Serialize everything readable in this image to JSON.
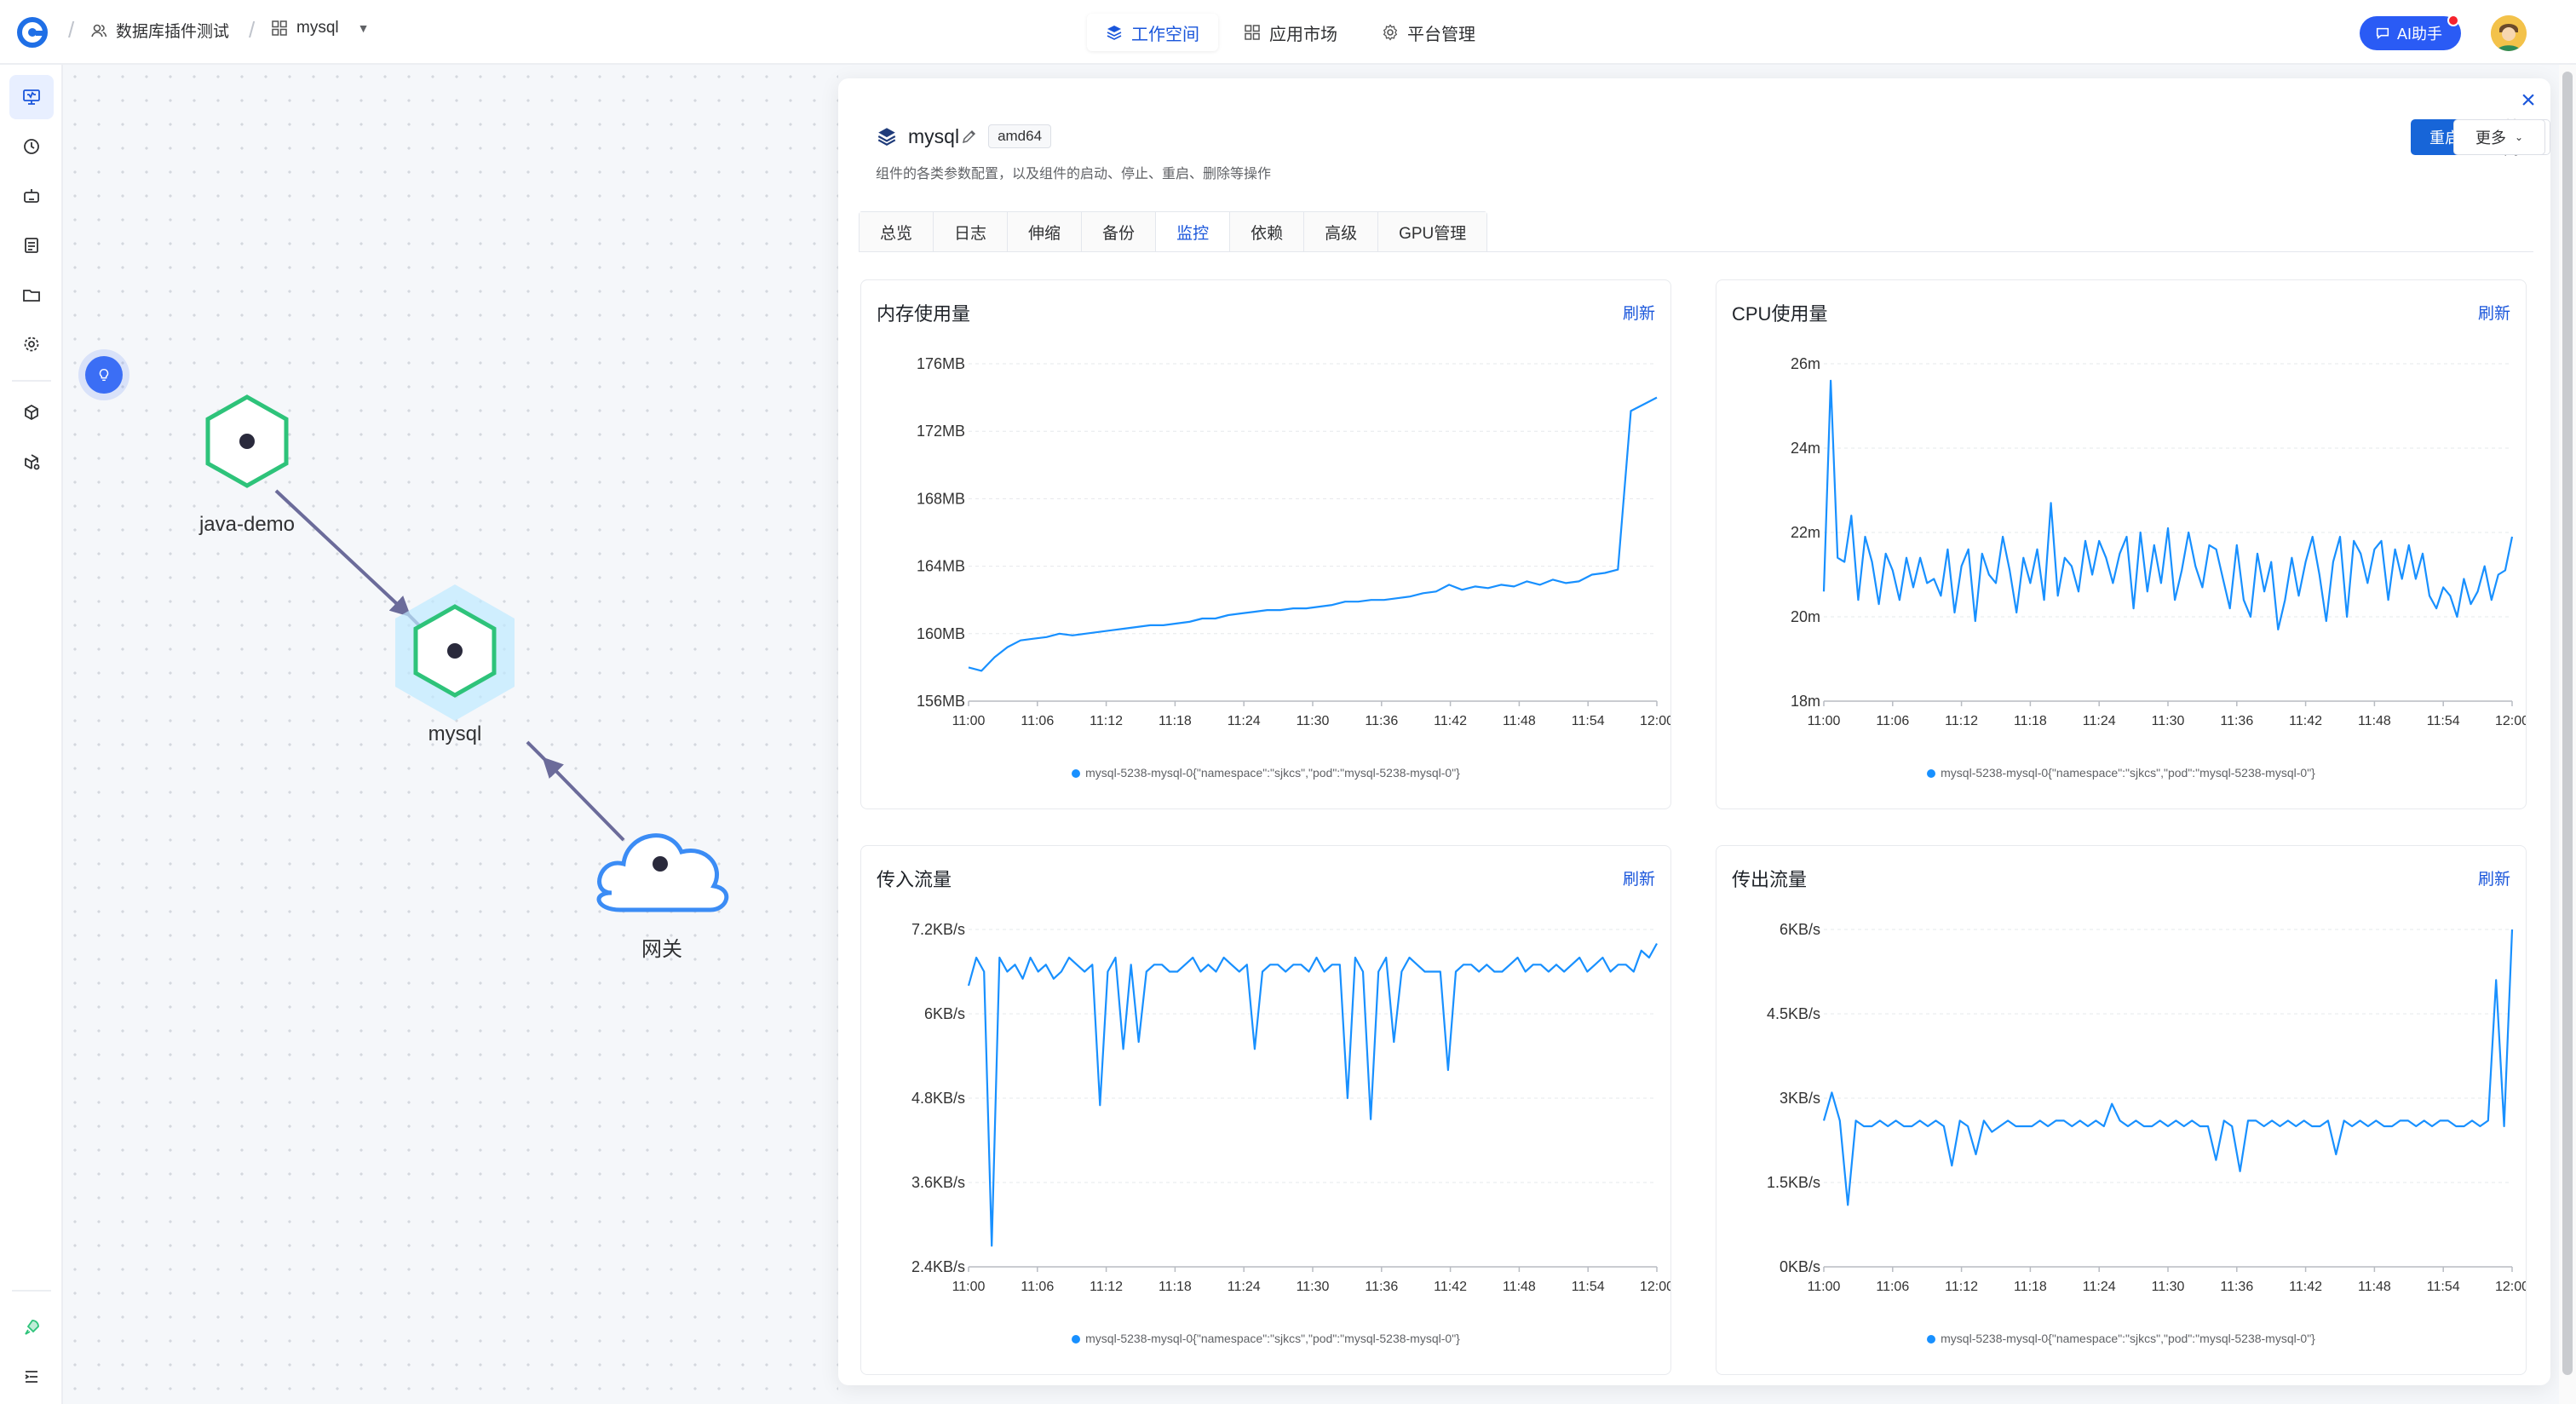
{
  "breadcrumb": {
    "team": "数据库插件测试",
    "app": "mysql"
  },
  "topnav": [
    {
      "label": "工作空间",
      "icon": "layers-icon",
      "active": true
    },
    {
      "label": "应用市场",
      "icon": "grid-icon",
      "active": false
    },
    {
      "label": "平台管理",
      "icon": "gear-icon",
      "active": false
    }
  ],
  "ai_button": "AI助手",
  "rail_icons": [
    "monitor-icon",
    "clock-icon",
    "robot-icon",
    "document-icon",
    "folder-icon",
    "gear-icon",
    "cube-icon",
    "cube-settings-icon",
    "rocket-icon",
    "menu-icon"
  ],
  "topology": {
    "nodes": [
      {
        "label": "java-demo",
        "kind": "hexagon"
      },
      {
        "label": "mysql",
        "kind": "hexagon-selected"
      },
      {
        "label": "网关",
        "kind": "cloud"
      }
    ]
  },
  "component": {
    "name": "mysql",
    "arch": "amd64",
    "description": "组件的各类参数配置，以及组件的启动、停止、重启、删除等操作",
    "actions": {
      "restart": "重启",
      "close": "关闭",
      "more": "更多"
    },
    "tabs": [
      "总览",
      "日志",
      "伸缩",
      "备份",
      "监控",
      "依赖",
      "高级",
      "GPU管理"
    ],
    "active_tab": "监控"
  },
  "refresh_label": "刷新",
  "legend_label": "mysql-5238-mysql-0{\"namespace\":\"sjkcs\",\"pod\":\"mysql-5238-mysql-0\"}",
  "colors": {
    "accent": "#1765d8",
    "line": "#1890ff",
    "node_green": "#2ec37a"
  },
  "chart_data": [
    {
      "type": "line",
      "title": "内存使用量",
      "x_ticks": [
        "11:00",
        "11:06",
        "11:12",
        "11:18",
        "11:24",
        "11:30",
        "11:36",
        "11:42",
        "11:48",
        "11:54",
        "12:00"
      ],
      "y_ticks": [
        "176MB",
        "172MB",
        "168MB",
        "164MB",
        "160MB",
        "156MB"
      ],
      "ylim": [
        156,
        176
      ],
      "series": [
        {
          "name": "mysql-5238-mysql-0",
          "values": [
            158.0,
            157.8,
            158.6,
            159.2,
            159.6,
            159.7,
            159.8,
            160.0,
            159.9,
            160.0,
            160.1,
            160.2,
            160.3,
            160.4,
            160.5,
            160.5,
            160.6,
            160.7,
            160.9,
            160.9,
            161.1,
            161.2,
            161.3,
            161.4,
            161.4,
            161.5,
            161.5,
            161.6,
            161.7,
            161.9,
            161.9,
            162.0,
            162.0,
            162.1,
            162.2,
            162.4,
            162.5,
            162.9,
            162.6,
            162.8,
            162.7,
            162.9,
            162.8,
            163.1,
            162.9,
            163.2,
            163.0,
            163.1,
            163.5,
            163.6,
            163.8,
            173.2,
            173.6,
            174.0
          ]
        }
      ]
    },
    {
      "type": "line",
      "title": "CPU使用量",
      "x_ticks": [
        "11:00",
        "11:06",
        "11:12",
        "11:18",
        "11:24",
        "11:30",
        "11:36",
        "11:42",
        "11:48",
        "11:54",
        "12:00"
      ],
      "y_ticks": [
        "26m",
        "24m",
        "22m",
        "20m",
        "18m"
      ],
      "ylim": [
        18,
        26
      ],
      "series": [
        {
          "name": "mysql-5238-mysql-0",
          "values": [
            20.6,
            25.6,
            21.4,
            21.3,
            22.4,
            20.4,
            21.9,
            21.3,
            20.3,
            21.5,
            21.1,
            20.4,
            21.4,
            20.7,
            21.4,
            20.8,
            20.9,
            20.5,
            21.6,
            20.1,
            21.2,
            21.6,
            19.9,
            21.5,
            21.0,
            20.8,
            21.9,
            21.1,
            20.1,
            21.4,
            20.8,
            21.6,
            20.4,
            22.7,
            20.5,
            21.4,
            21.2,
            20.6,
            21.8,
            21.0,
            21.8,
            21.4,
            20.8,
            21.5,
            21.9,
            20.2,
            22.0,
            20.6,
            21.7,
            20.8,
            22.1,
            20.4,
            21.1,
            22.0,
            21.2,
            20.7,
            21.7,
            21.6,
            20.9,
            20.2,
            21.7,
            20.4,
            20.0,
            21.5,
            20.6,
            21.3,
            19.7,
            20.4,
            21.4,
            20.5,
            21.3,
            21.9,
            21.0,
            19.9,
            21.3,
            21.9,
            20.0,
            21.8,
            21.5,
            20.8,
            21.6,
            21.8,
            20.4,
            21.6,
            20.9,
            21.7,
            20.9,
            21.5,
            20.5,
            20.2,
            20.7,
            20.5,
            20.0,
            20.9,
            20.3,
            20.6,
            21.2,
            20.4,
            21.0,
            21.1,
            21.9
          ]
        }
      ]
    },
    {
      "type": "line",
      "title": "传入流量",
      "x_ticks": [
        "11:00",
        "11:06",
        "11:12",
        "11:18",
        "11:24",
        "11:30",
        "11:36",
        "11:42",
        "11:48",
        "11:54",
        "12:00"
      ],
      "y_ticks": [
        "7.2KB/s",
        "6KB/s",
        "4.8KB/s",
        "3.6KB/s",
        "2.4KB/s"
      ],
      "ylim": [
        2.4,
        7.2
      ],
      "series": [
        {
          "name": "mysql-5238-mysql-0",
          "values": [
            6.4,
            6.8,
            6.6,
            2.7,
            6.8,
            6.6,
            6.7,
            6.5,
            6.8,
            6.6,
            6.7,
            6.5,
            6.6,
            6.8,
            6.7,
            6.6,
            6.7,
            4.7,
            6.6,
            6.8,
            5.5,
            6.7,
            5.6,
            6.6,
            6.7,
            6.7,
            6.6,
            6.6,
            6.7,
            6.8,
            6.6,
            6.7,
            6.6,
            6.8,
            6.7,
            6.6,
            6.7,
            5.5,
            6.6,
            6.7,
            6.7,
            6.6,
            6.7,
            6.7,
            6.6,
            6.8,
            6.6,
            6.7,
            6.7,
            4.8,
            6.8,
            6.6,
            4.5,
            6.6,
            6.8,
            5.6,
            6.6,
            6.8,
            6.7,
            6.6,
            6.6,
            6.6,
            5.2,
            6.6,
            6.7,
            6.7,
            6.6,
            6.7,
            6.6,
            6.6,
            6.7,
            6.8,
            6.6,
            6.7,
            6.7,
            6.6,
            6.7,
            6.6,
            6.7,
            6.8,
            6.6,
            6.7,
            6.8,
            6.6,
            6.7,
            6.7,
            6.6,
            6.9,
            6.8,
            7.0
          ]
        }
      ]
    },
    {
      "type": "line",
      "title": "传出流量",
      "x_ticks": [
        "11:00",
        "11:06",
        "11:12",
        "11:18",
        "11:24",
        "11:30",
        "11:36",
        "11:42",
        "11:48",
        "11:54",
        "12:00"
      ],
      "y_ticks": [
        "6KB/s",
        "4.5KB/s",
        "3KB/s",
        "1.5KB/s",
        "0KB/s"
      ],
      "ylim": [
        0,
        6
      ],
      "series": [
        {
          "name": "mysql-5238-mysql-0",
          "values": [
            2.6,
            3.1,
            2.6,
            1.1,
            2.6,
            2.5,
            2.5,
            2.6,
            2.5,
            2.6,
            2.5,
            2.5,
            2.6,
            2.5,
            2.6,
            2.5,
            1.8,
            2.6,
            2.5,
            2.0,
            2.6,
            2.4,
            2.5,
            2.6,
            2.5,
            2.5,
            2.5,
            2.6,
            2.5,
            2.6,
            2.6,
            2.5,
            2.6,
            2.5,
            2.6,
            2.5,
            2.9,
            2.6,
            2.5,
            2.6,
            2.5,
            2.5,
            2.6,
            2.5,
            2.6,
            2.5,
            2.6,
            2.5,
            2.5,
            1.9,
            2.6,
            2.5,
            1.7,
            2.6,
            2.6,
            2.5,
            2.6,
            2.5,
            2.6,
            2.5,
            2.6,
            2.5,
            2.5,
            2.6,
            2.0,
            2.6,
            2.5,
            2.6,
            2.5,
            2.6,
            2.5,
            2.5,
            2.6,
            2.6,
            2.5,
            2.6,
            2.5,
            2.6,
            2.6,
            2.5,
            2.5,
            2.6,
            2.5,
            2.6,
            5.1,
            2.5,
            6.0
          ]
        }
      ]
    }
  ]
}
